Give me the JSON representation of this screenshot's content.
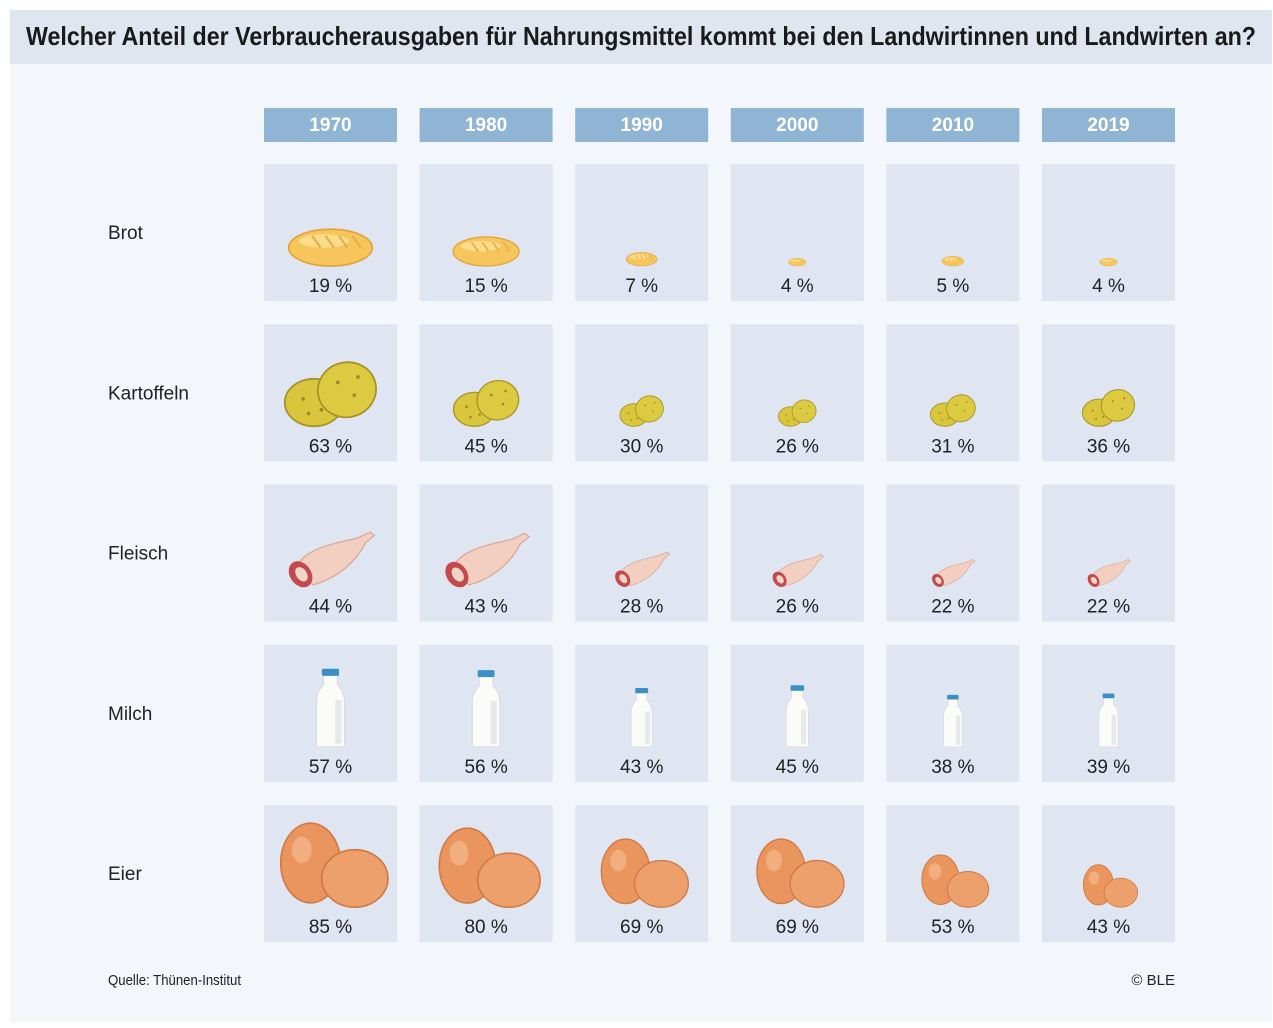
{
  "chart_data": {
    "type": "pictogram",
    "title": "Welcher Anteil der Verbraucherausgaben für Nahrungsmittel kommt bei den Landwirtinnen und Landwirten an?",
    "categories": [
      "1970",
      "1980",
      "1990",
      "2000",
      "2010",
      "2019"
    ],
    "series": [
      {
        "name": "Brot",
        "values": [
          19,
          15,
          7,
          4,
          5,
          4
        ],
        "value_labels": [
          "19 %",
          "15 %",
          "7 %",
          "4 %",
          "5 %",
          "4 %"
        ]
      },
      {
        "name": "Kartoffeln",
        "values": [
          63,
          45,
          30,
          26,
          31,
          36
        ],
        "value_labels": [
          "63 %",
          "45 %",
          "30 %",
          "26 %",
          "31 %",
          "36 %"
        ]
      },
      {
        "name": "Fleisch",
        "values": [
          44,
          43,
          28,
          26,
          22,
          22
        ],
        "value_labels": [
          "44 %",
          "43 %",
          "28 %",
          "26 %",
          "22 %",
          "22 %"
        ]
      },
      {
        "name": "Milch",
        "values": [
          57,
          56,
          43,
          45,
          38,
          39
        ],
        "value_labels": [
          "57 %",
          "56 %",
          "43 %",
          "45 %",
          "38 %",
          "39 %"
        ]
      },
      {
        "name": "Eier",
        "values": [
          85,
          80,
          69,
          69,
          53,
          43
        ],
        "value_labels": [
          "85 %",
          "80 %",
          "69 %",
          "69 %",
          "53 %",
          "43 %"
        ]
      }
    ],
    "source": "Quelle: Thünen-Institut",
    "credit": "© BLE"
  }
}
